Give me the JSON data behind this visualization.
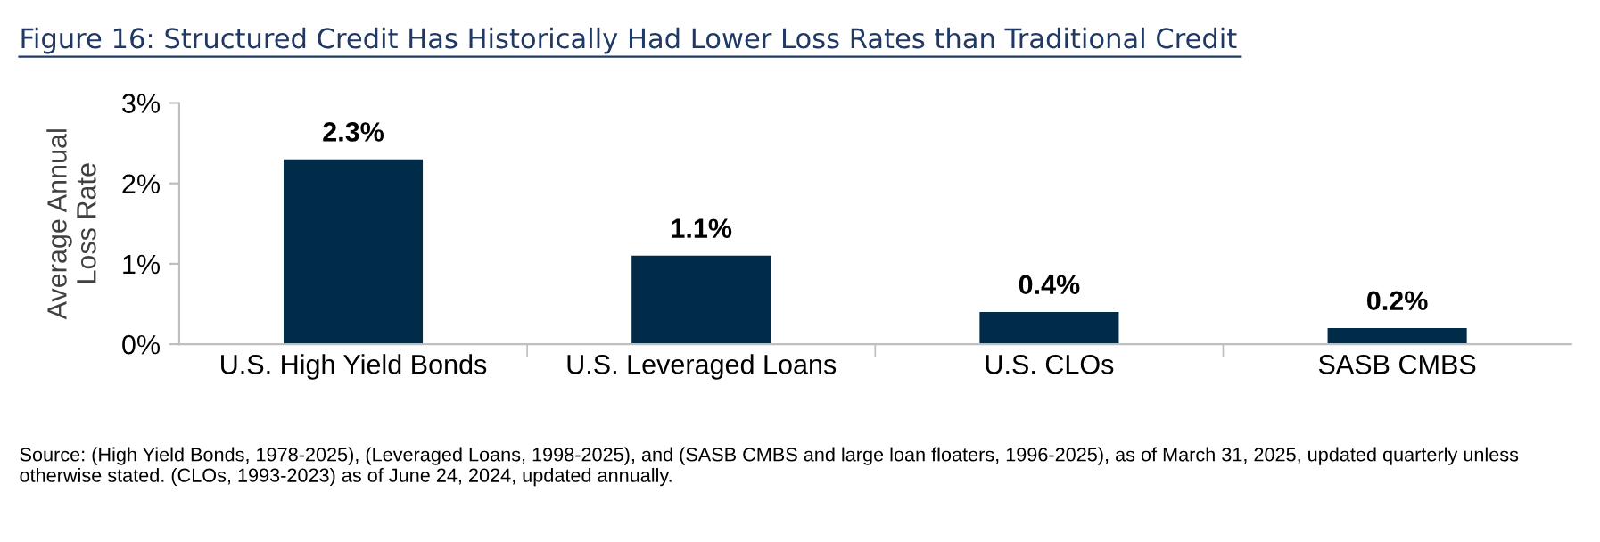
{
  "chart_data": {
    "type": "bar",
    "title": "Figure 16: Structured Credit Has Historically Had Lower Loss Rates than Traditional Credit",
    "ylabel": "Average Annual\nLoss Rate",
    "categories": [
      "U.S. High Yield Bonds",
      "U.S. Leveraged Loans",
      "U.S. CLOs",
      "SASB CMBS"
    ],
    "values": [
      2.3,
      1.1,
      0.4,
      0.2
    ],
    "value_labels": [
      "2.3%",
      "1.1%",
      "0.4%",
      "0.2%"
    ],
    "color": "#002b49",
    "ylim": [
      0,
      3
    ],
    "yticks": [
      {
        "value": 0,
        "label": "0%"
      },
      {
        "value": 1,
        "label": "1%"
      },
      {
        "value": 2,
        "label": "2%"
      },
      {
        "value": 3,
        "label": "3%"
      }
    ],
    "grid": false,
    "annotations": [
      "Source: (High Yield Bonds, 1978-2025), (Leveraged Loans, 1998-2025), and (SASB CMBS and large loan floaters, 1996-2025), as of March 31, 2025, updated quarterly unless otherwise stated. (CLOs, 1993-2023) as of June 24, 2024, updated annually."
    ]
  }
}
